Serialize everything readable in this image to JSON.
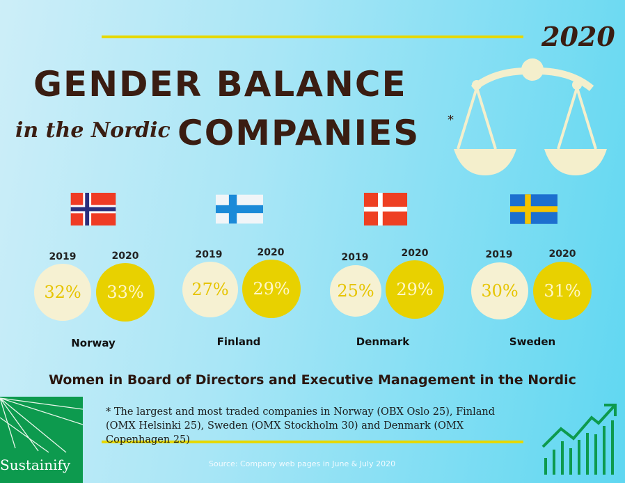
{
  "header": {
    "year": "2020",
    "title_line1": "GENDER BALANCE",
    "title_line2_script": "in the Nordic",
    "title_line2_bold": "COMPANIES",
    "title_mark": "*"
  },
  "chart_data": {
    "type": "bubble-comparison",
    "categories": [
      "Norway",
      "Finland",
      "Denmark",
      "Sweden"
    ],
    "series": [
      {
        "name": "2019",
        "values": [
          32,
          27,
          25,
          30
        ],
        "labels": [
          "32%",
          "27%",
          "25%",
          "30%"
        ],
        "color": "#f6f1d2"
      },
      {
        "name": "2020",
        "values": [
          33,
          29,
          29,
          31
        ],
        "labels": [
          "33%",
          "29%",
          "29%",
          "31%"
        ],
        "color": "#e8d100"
      }
    ],
    "subtitle": "Women in Board of Directors and Executive Management in the Nordic"
  },
  "footnote": "* The largest and most traded companies in Norway (OBX Oslo 25), Finland (OMX Helsinki 25), Sweden (OMX Stockholm 30) and Denmark (OMX Copenhagen 25)",
  "source": "Source: Company web pages in June & July 2020",
  "logo": {
    "text": "Sustainify"
  },
  "colors": {
    "accent_yellow": "#e6d800",
    "title_brown": "#3a1d12",
    "logo_green": "#0d9a4e"
  }
}
